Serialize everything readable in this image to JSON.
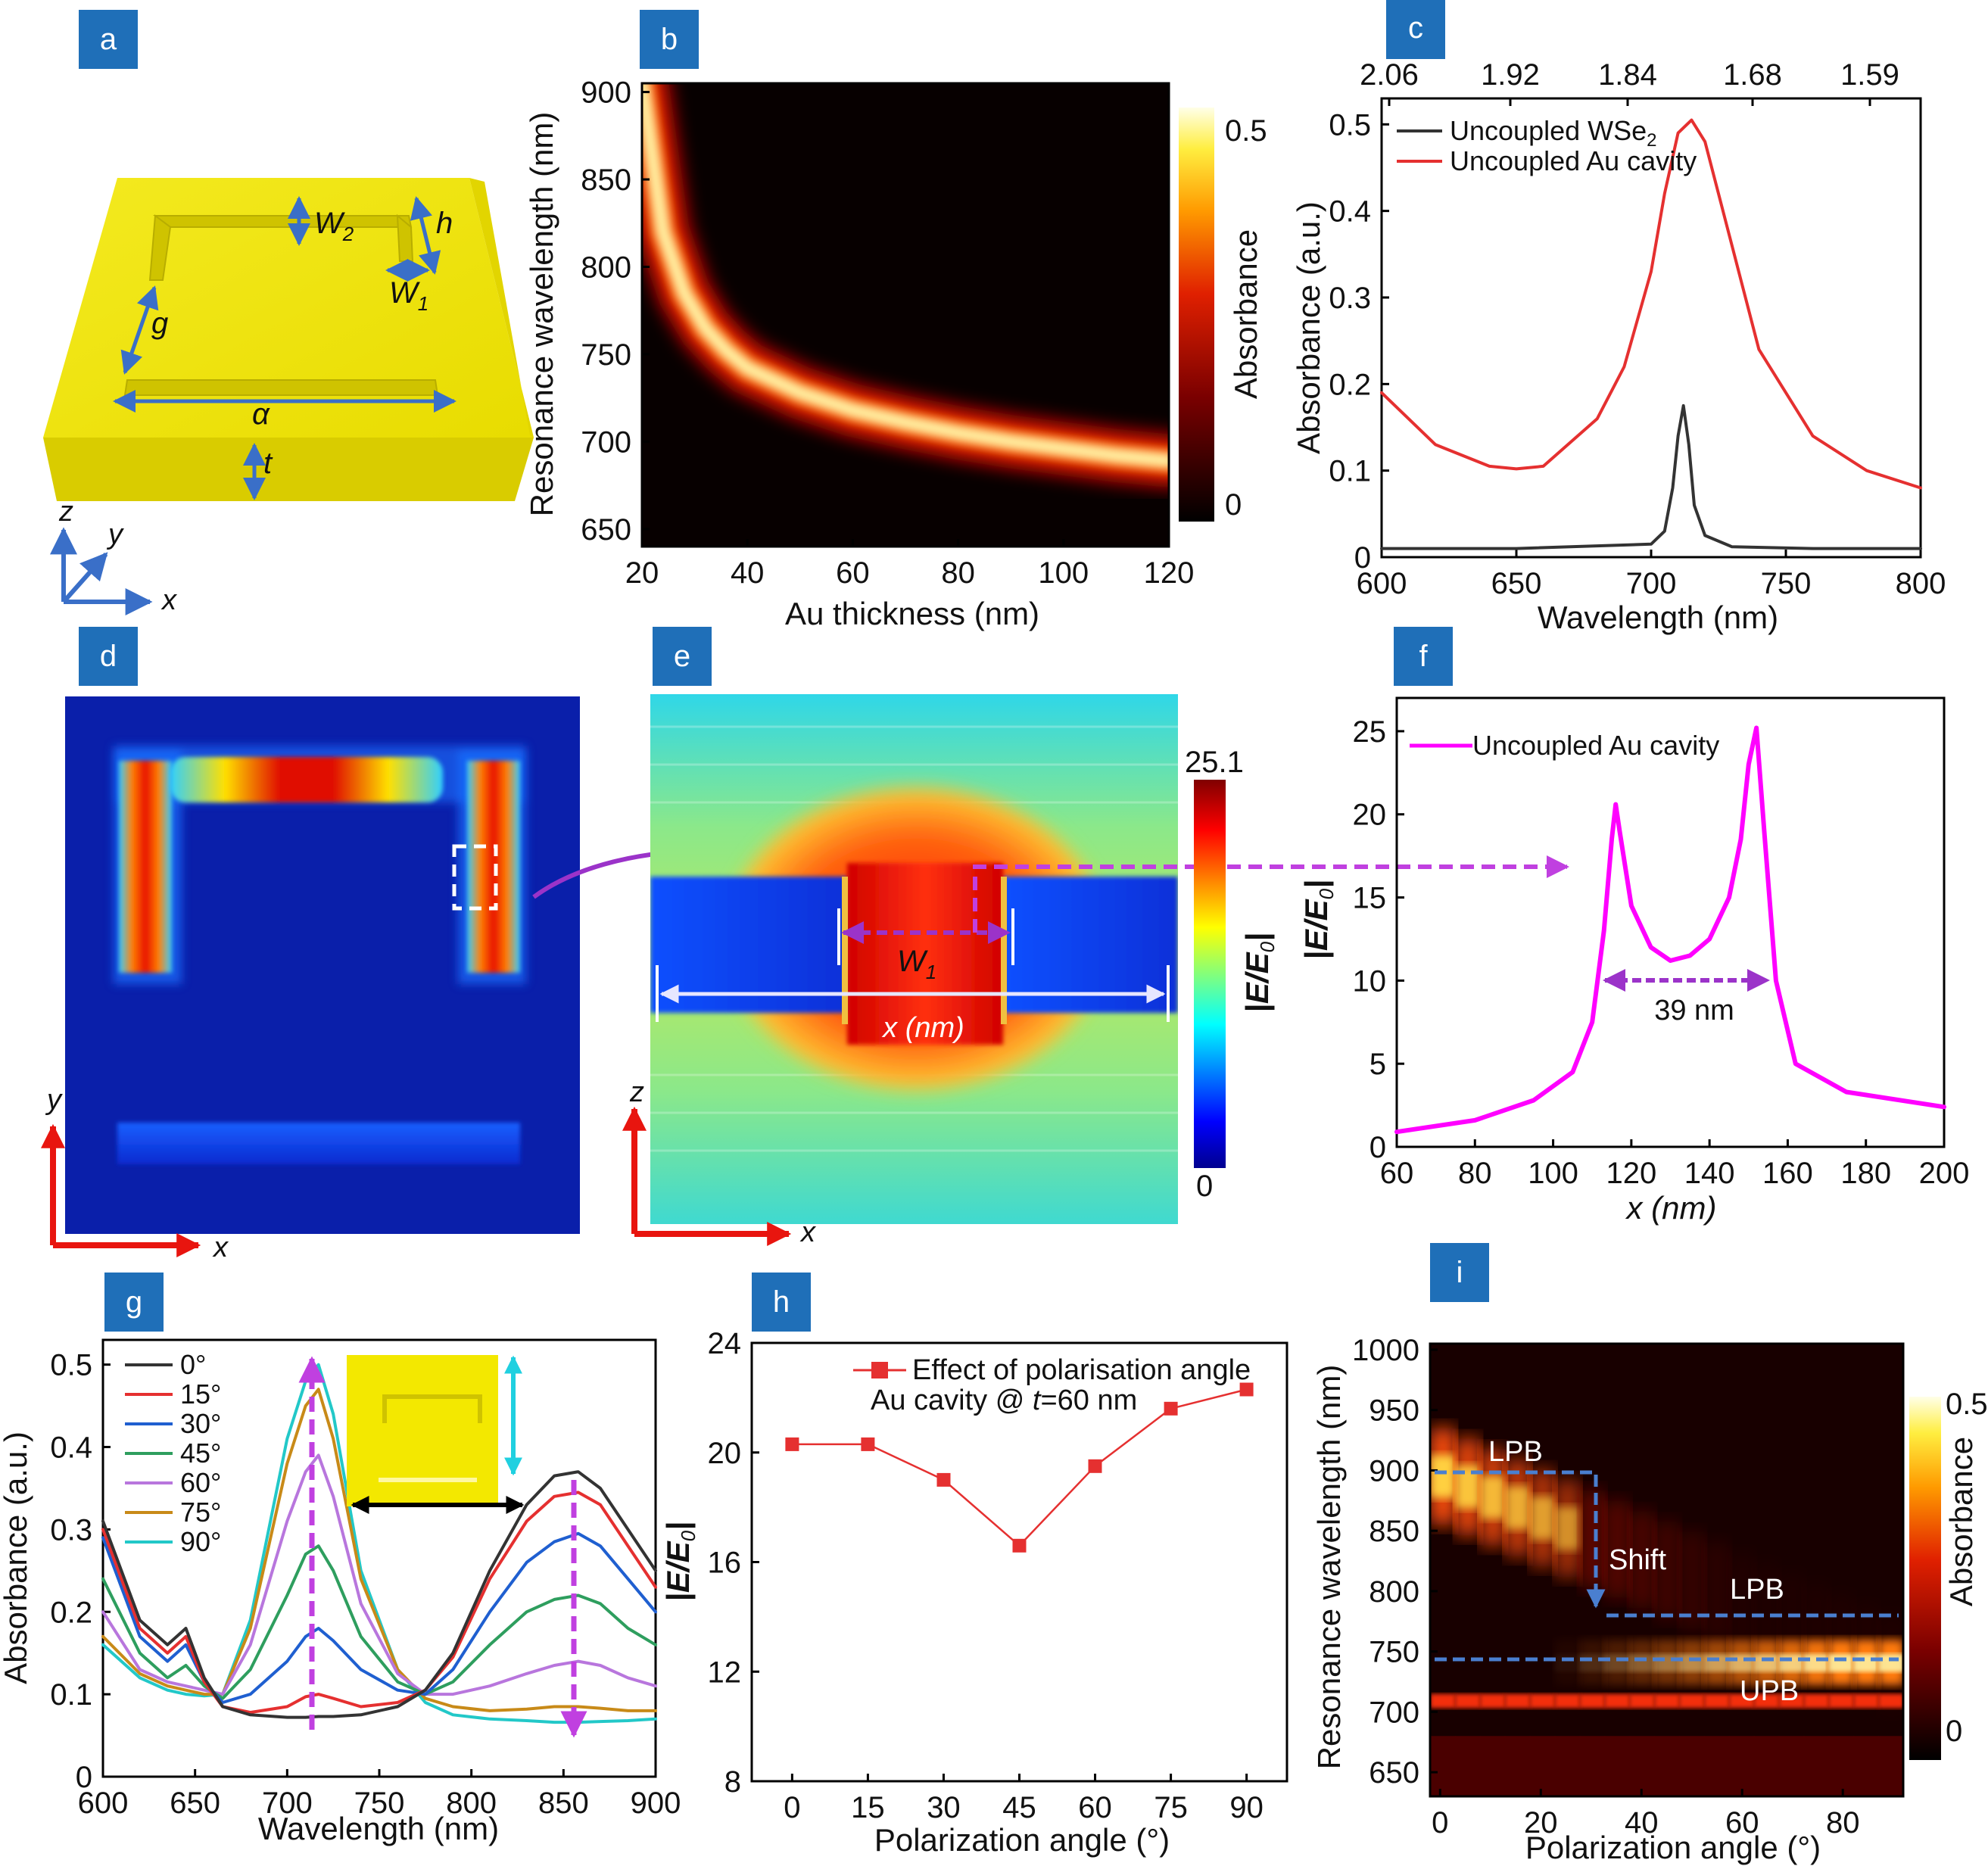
{
  "panel_labels": [
    "a",
    "b",
    "c",
    "d",
    "e",
    "f",
    "g",
    "h",
    "i"
  ],
  "colors": {
    "panel_label_bg": "#1f6fb8",
    "gold": "#f2e300",
    "purple": "#9b33c9",
    "red_arrow": "#e8150f",
    "magenta": "#ff00ff",
    "dashed_blue": "#4a7fd0"
  },
  "panel_a": {
    "labels": {
      "w2": "W",
      "w2_sub": "2",
      "h": "h",
      "w1": "W",
      "w1_sub": "1",
      "g": "g",
      "a": "α",
      "t": "t"
    },
    "axes": {
      "z": "z",
      "y": "y",
      "x": "x"
    }
  },
  "panel_d": {
    "axes": {
      "y": "y",
      "x": "x"
    }
  },
  "panel_e": {
    "axes": {
      "z": "z",
      "x": "x"
    },
    "labels": {
      "w1": "W",
      "w1_sub": "1",
      "xnm": "x (nm)"
    }
  },
  "chart_data": [
    {
      "panel": "b",
      "type": "heatmap",
      "xlabel": "Au thickness (nm)",
      "ylabel": "Resonance wavelength (nm)",
      "xlim": [
        20,
        120
      ],
      "ylim": [
        640,
        905
      ],
      "xticks": [
        20,
        40,
        60,
        80,
        100,
        120
      ],
      "yticks": [
        650,
        700,
        750,
        800,
        850,
        900
      ],
      "colorbar": {
        "label": "Absorbance",
        "ticks": [
          "0.5",
          "0"
        ],
        "range": [
          0,
          0.55
        ]
      },
      "peak_curve": {
        "thickness": [
          20,
          24,
          28,
          32,
          36,
          40,
          50,
          60,
          70,
          80,
          90,
          100,
          110,
          120
        ],
        "wavelength": [
          905,
          820,
          785,
          765,
          752,
          742,
          728,
          718,
          711,
          705,
          700,
          696,
          692,
          689
        ]
      }
    },
    {
      "panel": "c",
      "type": "line",
      "xlabel": "Wavelength (nm)",
      "ylabel": "Absorbance (a.u.)",
      "top_axis_label": "",
      "top_ticks": [
        "2.06",
        "1.92",
        "1.84",
        "1.68",
        "1.59"
      ],
      "xlim": [
        600,
        800
      ],
      "ylim": [
        0,
        0.53
      ],
      "xticks": [
        600,
        650,
        700,
        750,
        800
      ],
      "yticks": [
        "0",
        "0.1",
        "0.2",
        "0.3",
        "0.4",
        "0.5"
      ],
      "series": [
        {
          "name": "Uncoupled WSe",
          "name_sub": "2",
          "color": "#333333",
          "x": [
            600,
            650,
            700,
            705,
            708,
            710,
            712,
            714,
            716,
            720,
            730,
            760,
            800
          ],
          "y": [
            0.01,
            0.01,
            0.015,
            0.03,
            0.08,
            0.14,
            0.175,
            0.13,
            0.06,
            0.025,
            0.012,
            0.01,
            0.01
          ]
        },
        {
          "name": "Uncoupled Au cavity",
          "color": "#e53030",
          "x": [
            600,
            620,
            640,
            650,
            660,
            680,
            690,
            700,
            705,
            710,
            715,
            720,
            730,
            740,
            760,
            780,
            800
          ],
          "y": [
            0.19,
            0.13,
            0.105,
            0.102,
            0.105,
            0.16,
            0.22,
            0.33,
            0.42,
            0.49,
            0.505,
            0.48,
            0.36,
            0.24,
            0.14,
            0.1,
            0.08
          ]
        }
      ]
    },
    {
      "panel": "e",
      "type": "heatmap",
      "colorbar": {
        "label_italic": "|E/E",
        "label_sub": "0",
        "label_end": "|",
        "ticks": [
          "25.1",
          "0"
        ]
      }
    },
    {
      "panel": "f",
      "type": "line",
      "xlabel": "x (nm)",
      "ylabel": "|E/E0|",
      "ylabel_parts": {
        "main": "|E/E",
        "sub": "0",
        "end": "|"
      },
      "xlim": [
        60,
        200
      ],
      "ylim": [
        0,
        27
      ],
      "xticks": [
        60,
        80,
        100,
        120,
        140,
        160,
        180,
        200
      ],
      "yticks": [
        0,
        5,
        10,
        15,
        20,
        25
      ],
      "annotation": "39 nm",
      "series": [
        {
          "name": "Uncoupled Au cavity",
          "color": "#ff00ff",
          "x": [
            60,
            80,
            95,
            105,
            110,
            113,
            115,
            116,
            117,
            120,
            125,
            130,
            135,
            140,
            145,
            148,
            150,
            152,
            154,
            157,
            162,
            175,
            200
          ],
          "y": [
            0.9,
            1.6,
            2.8,
            4.5,
            7.5,
            13,
            18.5,
            20.6,
            19,
            14.5,
            12,
            11.2,
            11.5,
            12.5,
            15,
            18.5,
            23,
            25.2,
            19,
            10,
            5,
            3.3,
            2.4
          ]
        }
      ]
    },
    {
      "panel": "g",
      "type": "line",
      "xlabel": "Wavelength (nm)",
      "ylabel": "Absorbance (a.u.)",
      "xlim": [
        600,
        900
      ],
      "ylim": [
        0,
        0.53
      ],
      "xticks": [
        600,
        650,
        700,
        750,
        800,
        850,
        900
      ],
      "yticks": [
        "0",
        "0.1",
        "0.2",
        "0.3",
        "0.4",
        "0.5"
      ],
      "x": [
        600,
        620,
        635,
        645,
        655,
        665,
        680,
        700,
        710,
        717,
        725,
        740,
        760,
        775,
        790,
        810,
        830,
        845,
        858,
        870,
        885,
        900
      ],
      "series": [
        {
          "name": "0°",
          "color": "#333333",
          "y": [
            0.31,
            0.19,
            0.16,
            0.18,
            0.12,
            0.085,
            0.075,
            0.072,
            0.072,
            0.073,
            0.073,
            0.075,
            0.085,
            0.105,
            0.15,
            0.25,
            0.33,
            0.365,
            0.37,
            0.35,
            0.3,
            0.25
          ]
        },
        {
          "name": "15°",
          "color": "#e53030",
          "y": [
            0.3,
            0.18,
            0.15,
            0.17,
            0.115,
            0.085,
            0.078,
            0.085,
            0.097,
            0.1,
            0.095,
            0.085,
            0.09,
            0.105,
            0.145,
            0.24,
            0.31,
            0.34,
            0.345,
            0.33,
            0.28,
            0.23
          ]
        },
        {
          "name": "30°",
          "color": "#1f5fd0",
          "y": [
            0.29,
            0.17,
            0.14,
            0.16,
            0.115,
            0.09,
            0.1,
            0.14,
            0.17,
            0.18,
            0.165,
            0.13,
            0.105,
            0.1,
            0.13,
            0.2,
            0.26,
            0.285,
            0.295,
            0.28,
            0.24,
            0.2
          ]
        },
        {
          "name": "45°",
          "color": "#2e9e5e",
          "y": [
            0.24,
            0.15,
            0.12,
            0.135,
            0.11,
            0.095,
            0.13,
            0.22,
            0.27,
            0.28,
            0.25,
            0.17,
            0.115,
            0.1,
            0.115,
            0.16,
            0.2,
            0.215,
            0.22,
            0.21,
            0.18,
            0.16
          ]
        },
        {
          "name": "60°",
          "color": "#b876dd",
          "y": [
            0.2,
            0.13,
            0.115,
            0.11,
            0.105,
            0.1,
            0.16,
            0.31,
            0.37,
            0.39,
            0.34,
            0.21,
            0.125,
            0.1,
            0.1,
            0.11,
            0.125,
            0.135,
            0.14,
            0.135,
            0.12,
            0.11
          ]
        },
        {
          "name": "75°",
          "color": "#c88a18",
          "y": [
            0.17,
            0.125,
            0.11,
            0.105,
            0.1,
            0.1,
            0.18,
            0.38,
            0.45,
            0.47,
            0.41,
            0.24,
            0.13,
            0.095,
            0.085,
            0.08,
            0.082,
            0.085,
            0.085,
            0.083,
            0.08,
            0.08
          ]
        },
        {
          "name": "90°",
          "color": "#22c8c8",
          "y": [
            0.16,
            0.12,
            0.105,
            0.1,
            0.098,
            0.1,
            0.19,
            0.41,
            0.48,
            0.5,
            0.44,
            0.25,
            0.13,
            0.09,
            0.075,
            0.07,
            0.068,
            0.066,
            0.066,
            0.067,
            0.068,
            0.07
          ]
        }
      ]
    },
    {
      "panel": "h",
      "type": "line",
      "xlabel": "Polarization angle (°)",
      "ylabel": "|E/E0|",
      "ylabel_parts": {
        "main": "|E/E",
        "sub": "0",
        "end": "|"
      },
      "xlim": [
        -8,
        98
      ],
      "ylim": [
        8,
        24
      ],
      "xticks": [
        0,
        15,
        30,
        45,
        60,
        75,
        90
      ],
      "yticks": [
        8,
        12,
        16,
        20,
        24
      ],
      "legend": "Effect of polarisation angle",
      "subtitle": "Au cavity @ ",
      "subtitle_italic": "t",
      "subtitle_end": "=60 nm",
      "series": [
        {
          "name": "Effect of polarisation angle",
          "color": "#e53030",
          "x": [
            0,
            15,
            30,
            45,
            60,
            75,
            90
          ],
          "y": [
            20.3,
            20.3,
            19,
            16.6,
            19.5,
            21.6,
            22.3
          ]
        }
      ]
    },
    {
      "panel": "i",
      "type": "heatmap",
      "xlabel": "Polarization angle (°)",
      "ylabel": "Resonance wavelength (nm)",
      "xlim": [
        -2,
        92
      ],
      "ylim": [
        630,
        1005
      ],
      "xticks": [
        0,
        20,
        40,
        60,
        80
      ],
      "yticks": [
        650,
        700,
        750,
        800,
        850,
        900,
        950,
        1000
      ],
      "colorbar": {
        "label": "Absorbance",
        "ticks": [
          "0.5",
          "0"
        ]
      },
      "annotations": {
        "lpb_left": "LPB",
        "shift": "Shift",
        "lpb_right": "LPB",
        "upb": "UPB"
      }
    }
  ]
}
